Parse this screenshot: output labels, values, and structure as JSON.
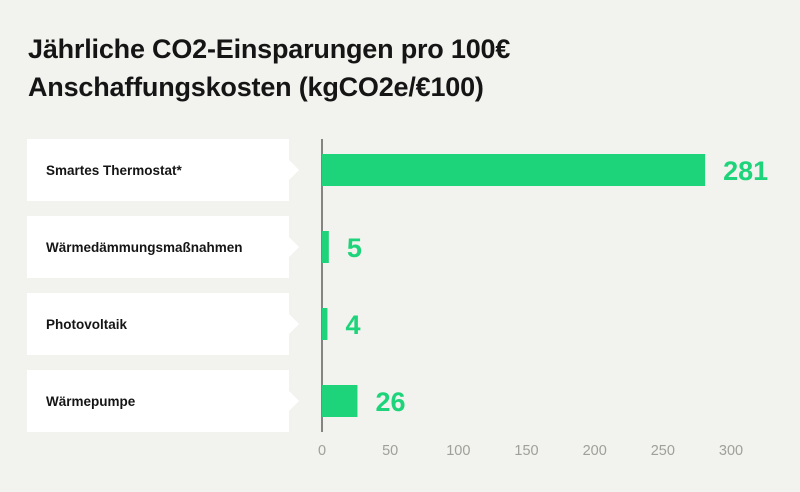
{
  "title": "Jährliche CO2-Einsparungen pro 100€ Anschaffungskosten (kgCO2e/€100)",
  "colors": {
    "bar": "#1ed47a",
    "label": "#1ed47a",
    "axis": "#151515",
    "tick": "#a0a09a",
    "background": "#f2f2ee"
  },
  "chart_data": {
    "type": "bar",
    "orientation": "horizontal",
    "title": "Jährliche CO2-Einsparungen pro 100€ Anschaffungskosten (kgCO2e/€100)",
    "categories": [
      "Smartes Thermostat*",
      "Wärmedämmungsmaßnahmen",
      "Photovoltaik",
      "Wärmepumpe"
    ],
    "values": [
      281,
      5,
      4,
      26
    ],
    "value_labels": [
      "281",
      "5",
      "4",
      "26"
    ],
    "xticks": [
      0,
      50,
      100,
      150,
      200,
      250,
      300
    ],
    "xlim": [
      0,
      300
    ],
    "xlabel": "",
    "ylabel": "",
    "grid": false
  }
}
